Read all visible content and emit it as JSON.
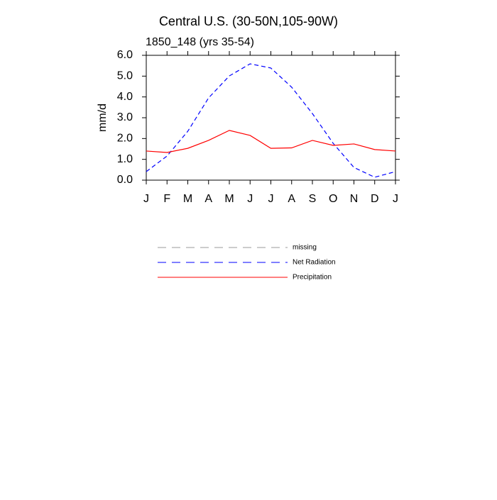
{
  "chart_data": {
    "type": "line",
    "title": "Central U.S. (30-50N,105-90W)",
    "subtitle": "1850_148 (yrs 35-54)",
    "y_label": "mm/d",
    "categories": [
      "J",
      "F",
      "M",
      "A",
      "M",
      "J",
      "J",
      "A",
      "S",
      "O",
      "N",
      "D",
      "J"
    ],
    "series": [
      {
        "name": "missing",
        "color": "#999999",
        "dashed": true,
        "values": [
          null,
          null,
          null,
          null,
          null,
          null,
          null,
          null,
          null,
          null,
          null,
          null,
          null
        ]
      },
      {
        "name": "Net Radiation",
        "color": "#0000ff",
        "dashed": true,
        "values": [
          0.41,
          1.16,
          2.35,
          3.95,
          5.01,
          5.59,
          5.39,
          4.47,
          3.2,
          1.77,
          0.61,
          0.14,
          0.41
        ]
      },
      {
        "name": "Precipitation",
        "color": "#ff0000",
        "dashed": false,
        "values": [
          1.4,
          1.33,
          1.53,
          1.91,
          2.39,
          2.15,
          1.53,
          1.55,
          1.91,
          1.67,
          1.74,
          1.47,
          1.4
        ]
      }
    ],
    "ylim": [
      0,
      6
    ],
    "yticks": [
      {
        "value": 0,
        "label": "0.0"
      },
      {
        "value": 1,
        "label": "1.0"
      },
      {
        "value": 2,
        "label": "2.0"
      },
      {
        "value": 3,
        "label": "3.0"
      },
      {
        "value": 4,
        "label": "4.0"
      },
      {
        "value": 5,
        "label": "5.0"
      },
      {
        "value": 6,
        "label": "6.0"
      }
    ],
    "grid": false
  }
}
